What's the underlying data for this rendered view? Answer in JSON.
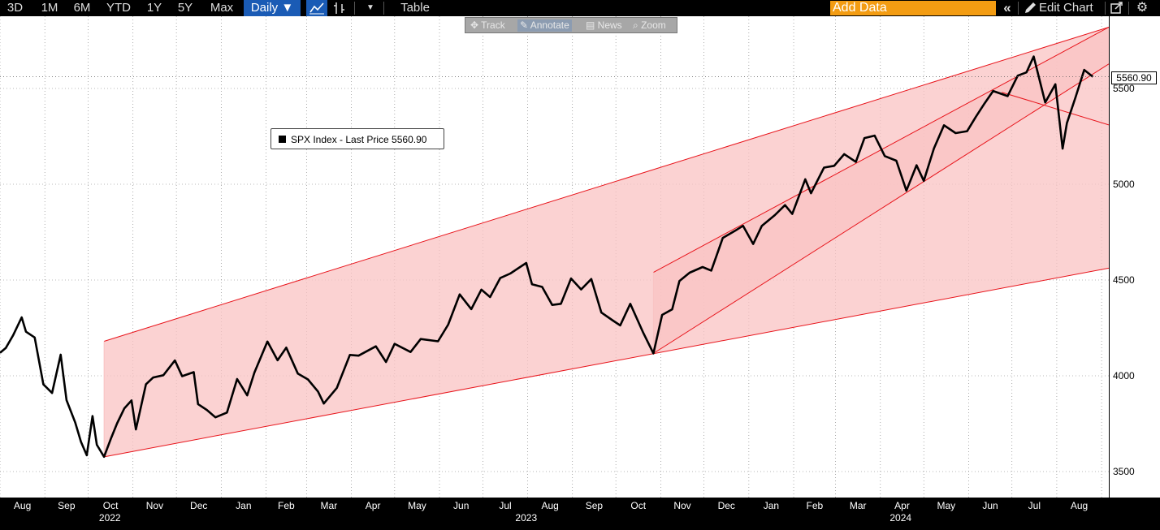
{
  "toolbar": {
    "ranges": [
      "3D",
      "1M",
      "6M",
      "YTD",
      "1Y",
      "5Y",
      "Max"
    ],
    "frequency": "Daily ▼",
    "table_label": "Table",
    "add_data_placeholder": "Add Data",
    "edit_chart_label": "Edit Chart",
    "icons": [
      "line-chart-icon",
      "bar-style-icon",
      "dropdown-caret-icon",
      "collapse-icon",
      "pencil-icon",
      "popout-icon",
      "gear-icon"
    ]
  },
  "mini_toolbar": {
    "items": [
      "Track",
      "Annotate",
      "News",
      "Zoom"
    ]
  },
  "legend": {
    "text": "SPX Index - Last Price 5560.90"
  },
  "price_tag": "5560.90",
  "colors": {
    "line": "#000000",
    "channel_line": "#e8141b",
    "channel_fill": "#f9c3c3",
    "accent": "#1a5bb5",
    "add_data": "#f39c12"
  },
  "chart_data": {
    "type": "line",
    "title": "",
    "series": [
      {
        "name": "SPX Index - Last Price",
        "points": [
          [
            "2022-08-01",
            4120
          ],
          [
            "2022-08-05",
            4145
          ],
          [
            "2022-08-10",
            4210
          ],
          [
            "2022-08-16",
            4305
          ],
          [
            "2022-08-19",
            4230
          ],
          [
            "2022-08-25",
            4200
          ],
          [
            "2022-08-31",
            3955
          ],
          [
            "2022-09-06",
            3910
          ],
          [
            "2022-09-12",
            4110
          ],
          [
            "2022-09-16",
            3873
          ],
          [
            "2022-09-22",
            3757
          ],
          [
            "2022-09-26",
            3655
          ],
          [
            "2022-09-30",
            3585
          ],
          [
            "2022-10-04",
            3790
          ],
          [
            "2022-10-07",
            3640
          ],
          [
            "2022-10-12",
            3577
          ],
          [
            "2022-10-17",
            3677
          ],
          [
            "2022-10-21",
            3752
          ],
          [
            "2022-10-26",
            3830
          ],
          [
            "2022-10-31",
            3871
          ],
          [
            "2022-11-03",
            3720
          ],
          [
            "2022-11-10",
            3956
          ],
          [
            "2022-11-15",
            3991
          ],
          [
            "2022-11-22",
            4003
          ],
          [
            "2022-11-30",
            4080
          ],
          [
            "2022-12-05",
            3998
          ],
          [
            "2022-12-13",
            4019
          ],
          [
            "2022-12-16",
            3852
          ],
          [
            "2022-12-22",
            3822
          ],
          [
            "2022-12-28",
            3783
          ],
          [
            "2023-01-05",
            3808
          ],
          [
            "2023-01-12",
            3983
          ],
          [
            "2023-01-19",
            3898
          ],
          [
            "2023-01-24",
            4017
          ],
          [
            "2023-02-02",
            4179
          ],
          [
            "2023-02-09",
            4081
          ],
          [
            "2023-02-15",
            4147
          ],
          [
            "2023-02-23",
            4012
          ],
          [
            "2023-03-02",
            3981
          ],
          [
            "2023-03-09",
            3918
          ],
          [
            "2023-03-13",
            3855
          ],
          [
            "2023-03-22",
            3937
          ],
          [
            "2023-03-31",
            4109
          ],
          [
            "2023-04-06",
            4105
          ],
          [
            "2023-04-18",
            4154
          ],
          [
            "2023-04-25",
            4072
          ],
          [
            "2023-05-01",
            4167
          ],
          [
            "2023-05-12",
            4124
          ],
          [
            "2023-05-19",
            4192
          ],
          [
            "2023-05-31",
            4180
          ],
          [
            "2023-06-07",
            4267
          ],
          [
            "2023-06-15",
            4425
          ],
          [
            "2023-06-23",
            4348
          ],
          [
            "2023-06-30",
            4450
          ],
          [
            "2023-07-06",
            4411
          ],
          [
            "2023-07-13",
            4510
          ],
          [
            "2023-07-20",
            4534
          ],
          [
            "2023-07-31",
            4589
          ],
          [
            "2023-08-04",
            4478
          ],
          [
            "2023-08-11",
            4464
          ],
          [
            "2023-08-18",
            4370
          ],
          [
            "2023-08-24",
            4376
          ],
          [
            "2023-08-31",
            4508
          ],
          [
            "2023-09-07",
            4451
          ],
          [
            "2023-09-14",
            4505
          ],
          [
            "2023-09-21",
            4330
          ],
          [
            "2023-09-29",
            4288
          ],
          [
            "2023-10-04",
            4263
          ],
          [
            "2023-10-11",
            4376
          ],
          [
            "2023-10-20",
            4224
          ],
          [
            "2023-10-27",
            4117
          ],
          [
            "2023-11-02",
            4318
          ],
          [
            "2023-11-09",
            4347
          ],
          [
            "2023-11-14",
            4495
          ],
          [
            "2023-11-21",
            4538
          ],
          [
            "2023-11-30",
            4568
          ],
          [
            "2023-12-06",
            4549
          ],
          [
            "2023-12-14",
            4720
          ],
          [
            "2023-12-22",
            4755
          ],
          [
            "2023-12-28",
            4783
          ],
          [
            "2024-01-04",
            4688
          ],
          [
            "2024-01-10",
            4783
          ],
          [
            "2024-01-19",
            4839
          ],
          [
            "2024-01-26",
            4891
          ],
          [
            "2024-01-31",
            4845
          ],
          [
            "2024-02-09",
            5026
          ],
          [
            "2024-02-13",
            4953
          ],
          [
            "2024-02-22",
            5087
          ],
          [
            "2024-02-29",
            5096
          ],
          [
            "2024-03-07",
            5157
          ],
          [
            "2024-03-15",
            5117
          ],
          [
            "2024-03-21",
            5241
          ],
          [
            "2024-03-28",
            5254
          ],
          [
            "2024-04-04",
            5147
          ],
          [
            "2024-04-12",
            5123
          ],
          [
            "2024-04-19",
            4967
          ],
          [
            "2024-04-26",
            5099
          ],
          [
            "2024-05-01",
            5018
          ],
          [
            "2024-05-08",
            5187
          ],
          [
            "2024-05-15",
            5308
          ],
          [
            "2024-05-23",
            5267
          ],
          [
            "2024-05-31",
            5277
          ],
          [
            "2024-06-06",
            5352
          ],
          [
            "2024-06-12",
            5421
          ],
          [
            "2024-06-18",
            5487
          ],
          [
            "2024-06-28",
            5460
          ],
          [
            "2024-07-05",
            5567
          ],
          [
            "2024-07-11",
            5584
          ],
          [
            "2024-07-16",
            5667
          ],
          [
            "2024-07-24",
            5427
          ],
          [
            "2024-07-31",
            5522
          ],
          [
            "2024-08-05",
            5186
          ],
          [
            "2024-08-08",
            5319
          ],
          [
            "2024-08-14",
            5455
          ],
          [
            "2024-08-20",
            5597
          ],
          [
            "2024-08-26",
            5560.9
          ]
        ]
      }
    ],
    "channels": [
      {
        "name": "channel-1-upper",
        "from": [
          "2022-10-12",
          4180
        ],
        "to": [
          "2024-09-06",
          5820
        ]
      },
      {
        "name": "channel-1-lower",
        "from": [
          "2022-10-12",
          3577
        ],
        "to": [
          "2024-09-06",
          4562
        ]
      },
      {
        "name": "channel-2-upper",
        "from": [
          "2023-10-27",
          4540
        ],
        "to": [
          "2024-09-06",
          5820
        ]
      },
      {
        "name": "channel-2-lower",
        "from": [
          "2023-10-27",
          4117
        ],
        "to": [
          "2024-09-06",
          5628
        ]
      }
    ],
    "trendline": {
      "from": [
        "2024-06-24",
        5480
      ],
      "to": [
        "2024-09-06",
        5310
      ]
    },
    "x_ticks": [
      "Aug",
      "Sep",
      "Oct",
      "Nov",
      "Dec",
      "Jan",
      "Feb",
      "Mar",
      "Apr",
      "May",
      "Jun",
      "Jul",
      "Aug",
      "Sep",
      "Oct",
      "Nov",
      "Dec",
      "Jan",
      "Feb",
      "Mar",
      "Apr",
      "May",
      "Jun",
      "Jul",
      "Aug"
    ],
    "x_years": [
      "2022",
      "2023",
      "2024"
    ],
    "y_ticks": [
      "5500",
      "5000",
      "4500",
      "4000",
      "3500"
    ],
    "ylim": [
      3450,
      5900
    ],
    "xlim": [
      "2022-08-01",
      "2024-09-06"
    ],
    "grid": true,
    "legend_position": "top-left"
  }
}
